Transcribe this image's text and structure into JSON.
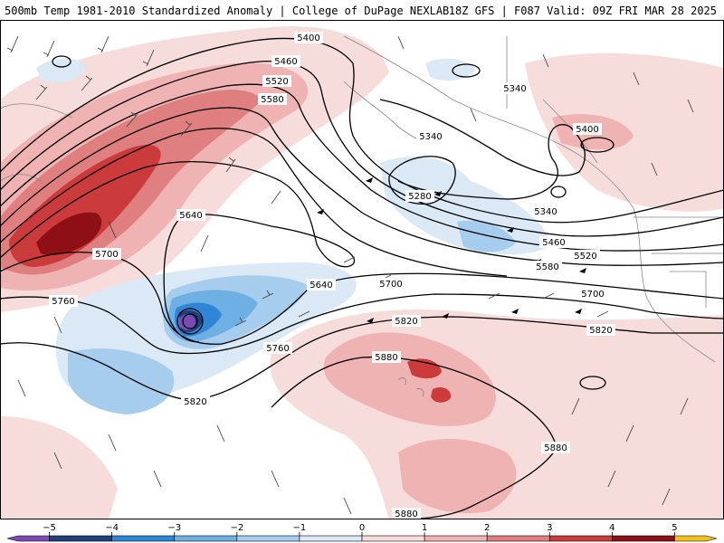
{
  "header": {
    "left": "500mb Temp 1981-2010 Standardized Anomaly | College of DuPage NEXLAB",
    "right": "18Z GFS | F087 Valid: 09Z FRI MAR 28 2025"
  },
  "colorbar": {
    "bins": [
      {
        "from": -5.5,
        "to": -5,
        "color": "#7b4bb3"
      },
      {
        "from": -5,
        "to": -4,
        "color": "#1f3f7a"
      },
      {
        "from": -4,
        "to": -3,
        "color": "#2f86d6"
      },
      {
        "from": -3,
        "to": -2,
        "color": "#6fb0e4"
      },
      {
        "from": -2,
        "to": -1,
        "color": "#a7cdee"
      },
      {
        "from": -1,
        "to": 0,
        "color": "#dbe8f5"
      },
      {
        "from": 0,
        "to": 1,
        "color": "#f7dcdc"
      },
      {
        "from": 1,
        "to": 2,
        "color": "#f0b3b3"
      },
      {
        "from": 2,
        "to": 3,
        "color": "#e07f7f"
      },
      {
        "from": 3,
        "to": 4,
        "color": "#cc3b3b"
      },
      {
        "from": 4,
        "to": 5,
        "color": "#8e0f16"
      },
      {
        "from": 5,
        "to": 5.5,
        "color": "#f0c020"
      }
    ],
    "ticks": [
      "−5",
      "−4",
      "−3",
      "−2",
      "−1",
      "0",
      "1",
      "2",
      "3",
      "4",
      "5"
    ]
  },
  "height_labels": {
    "h5400a": "5400",
    "h5460a": "5460",
    "h5520a": "5520",
    "h5580a": "5580",
    "h5340a": "5340",
    "h5340b": "5340",
    "h5340c": "5340",
    "h5280": "5280",
    "h5400b": "5400",
    "h5460b": "5460",
    "h5520b": "5520",
    "h5580b": "5580",
    "h5640a": "5640",
    "h5640b": "5640",
    "h5700a": "5700",
    "h5700b": "5700",
    "h5700c": "5700",
    "h5760a": "5760",
    "h5760b": "5760",
    "h5820a": "5820",
    "h5820b": "5820",
    "h5820c": "5820",
    "h5880a": "5880",
    "h5880b": "5880",
    "h5880c": "5880"
  }
}
